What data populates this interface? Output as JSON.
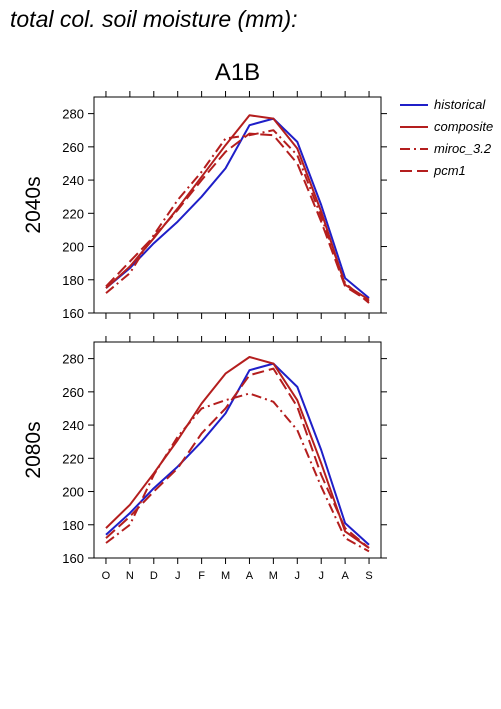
{
  "page_title": "total col. soil moisture (mm):",
  "scenario": "A1B",
  "legend": [
    {
      "label": "historical",
      "color": "#1f1fc8",
      "dash": "solid"
    },
    {
      "label": "composite",
      "color": "#b41e1e",
      "dash": "solid"
    },
    {
      "label": "miroc_3.2",
      "color": "#b41e1e",
      "dash": "dashdot"
    },
    {
      "label": "pcm1",
      "color": "#b41e1e",
      "dash": "dashed"
    }
  ],
  "chart_data": [
    {
      "type": "line",
      "ylabel": "2040s",
      "categories": [
        "O",
        "N",
        "D",
        "J",
        "F",
        "M",
        "A",
        "M",
        "J",
        "J",
        "A",
        "S"
      ],
      "ylim": [
        160,
        290
      ],
      "yticks": [
        160,
        180,
        200,
        220,
        240,
        260,
        280
      ],
      "series": [
        {
          "name": "historical",
          "values": [
            175,
            187,
            202,
            215,
            230,
            247,
            273,
            277,
            263,
            225,
            181,
            169
          ]
        },
        {
          "name": "composite",
          "values": [
            175,
            188,
            205,
            223,
            242,
            261,
            279,
            277,
            259,
            221,
            177,
            168
          ]
        },
        {
          "name": "miroc_3.2",
          "values": [
            172,
            184,
            207,
            228,
            245,
            265,
            267,
            270,
            255,
            218,
            178,
            166
          ]
        },
        {
          "name": "pcm1",
          "values": [
            176,
            191,
            206,
            222,
            240,
            257,
            268,
            267,
            250,
            215,
            176,
            167
          ]
        }
      ]
    },
    {
      "type": "line",
      "ylabel": "2080s",
      "categories": [
        "O",
        "N",
        "D",
        "J",
        "F",
        "M",
        "A",
        "M",
        "J",
        "J",
        "A",
        "S"
      ],
      "ylim": [
        160,
        290
      ],
      "yticks": [
        160,
        180,
        200,
        220,
        240,
        260,
        280
      ],
      "series": [
        {
          "name": "historical",
          "values": [
            174,
            187,
            202,
            215,
            230,
            247,
            273,
            277,
            263,
            225,
            181,
            168
          ]
        },
        {
          "name": "composite",
          "values": [
            178,
            192,
            211,
            231,
            253,
            271,
            281,
            277,
            255,
            217,
            176,
            166
          ]
        },
        {
          "name": "miroc_3.2",
          "values": [
            169,
            180,
            210,
            233,
            250,
            255,
            259,
            254,
            237,
            203,
            172,
            164
          ]
        },
        {
          "name": "pcm1",
          "values": [
            172,
            185,
            200,
            214,
            235,
            250,
            270,
            274,
            251,
            210,
            178,
            166
          ]
        }
      ]
    }
  ]
}
